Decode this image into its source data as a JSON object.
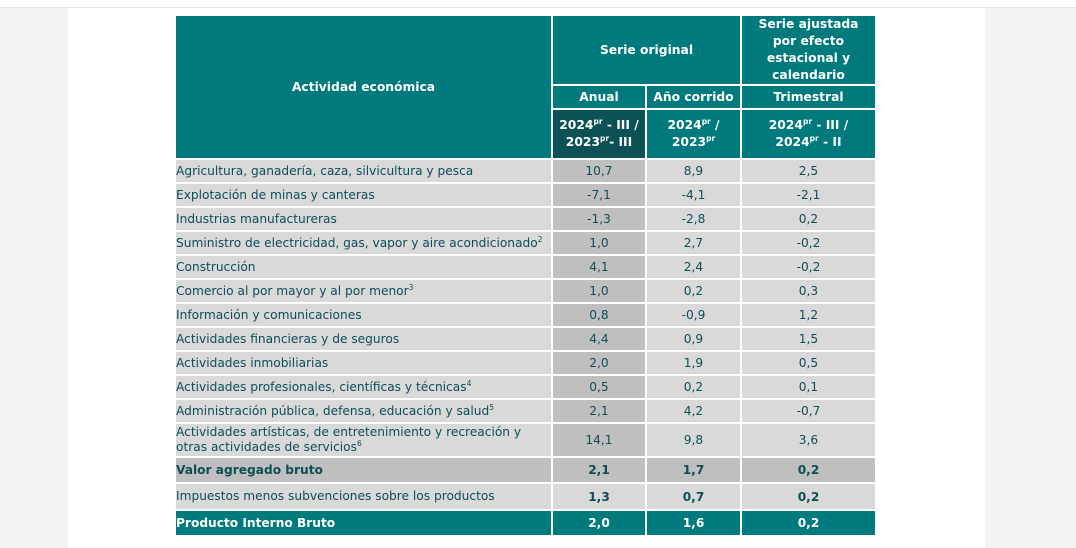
{
  "colors": {
    "header_teal": "#007a7c",
    "header_dark_teal": "#0b5156",
    "row_gray": "#d9d9d9",
    "row_dark_gray": "#bfbfbf",
    "text_teal": "#0e4e56"
  },
  "header": {
    "activity": "Actividad económica",
    "original_series": "Serie original",
    "adjusted_series": "Serie ajustada por efecto estacional y calendario",
    "anual": "Anual",
    "ano_corrido": "Año corrido",
    "trimestral": "Trimestral",
    "period_anual": {
      "a": "2024",
      "a_sup": "pr",
      "b": " - III / ",
      "c": "2023",
      "c_sup": "pr",
      "d": "- III"
    },
    "period_ac": {
      "a": "2024",
      "a_sup": "pr",
      "b": " / ",
      "c": "2023",
      "c_sup": "pr"
    },
    "period_tri": {
      "a": "2024",
      "a_sup": "pr",
      "b": " - III / ",
      "c": "2024",
      "c_sup": "pr",
      "d": " - II"
    }
  },
  "rows": [
    {
      "label": "Agricultura, ganadería, caza, silvicultura y pesca",
      "note": "",
      "anual": "10,7",
      "ano_corrido": "8,9",
      "trimestral": "2,5"
    },
    {
      "label": "Explotación de minas y canteras",
      "note": "",
      "anual": "-7,1",
      "ano_corrido": "-4,1",
      "trimestral": "-2,1"
    },
    {
      "label": "Industrias manufactureras",
      "note": "",
      "anual": "-1,3",
      "ano_corrido": "-2,8",
      "trimestral": "0,2"
    },
    {
      "label": "Suministro de electricidad, gas, vapor y aire acondicionado",
      "note": "2",
      "anual": "1,0",
      "ano_corrido": "2,7",
      "trimestral": "-0,2"
    },
    {
      "label": "Construcción",
      "note": "",
      "anual": "4,1",
      "ano_corrido": "2,4",
      "trimestral": "-0,2"
    },
    {
      "label": "Comercio al por mayor y al por menor",
      "note": "3",
      "anual": "1,0",
      "ano_corrido": "0,2",
      "trimestral": "0,3"
    },
    {
      "label": "Información y comunicaciones",
      "note": "",
      "anual": "0,8",
      "ano_corrido": "-0,9",
      "trimestral": "1,2"
    },
    {
      "label": "Actividades financieras y de seguros",
      "note": "",
      "anual": "4,4",
      "ano_corrido": "0,9",
      "trimestral": "1,5"
    },
    {
      "label": "Actividades inmobiliarias",
      "note": "",
      "anual": "2,0",
      "ano_corrido": "1,9",
      "trimestral": "0,5"
    },
    {
      "label": "Actividades profesionales, científicas y técnicas",
      "note": "4",
      "anual": "0,5",
      "ano_corrido": "0,2",
      "trimestral": "0,1"
    },
    {
      "label": "Administración pública, defensa, educación y salud",
      "note": "5",
      "anual": "2,1",
      "ano_corrido": "4,2",
      "trimestral": "-0,7"
    },
    {
      "label": "Actividades artísticas, de entretenimiento y recreación y otras actividades de servicios",
      "note": "6",
      "anual": "14,1",
      "ano_corrido": "9,8",
      "trimestral": "3,6"
    }
  ],
  "totals": {
    "vab": {
      "label": "Valor agregado bruto",
      "anual": "2,1",
      "ano_corrido": "1,7",
      "trimestral": "0,2"
    },
    "impuestos": {
      "label": "Impuestos menos subvenciones sobre los productos",
      "anual": "1,3",
      "ano_corrido": "0,7",
      "trimestral": "0,2"
    },
    "pib": {
      "label": "Producto Interno Bruto",
      "anual": "2,0",
      "ano_corrido": "1,6",
      "trimestral": "0,2"
    }
  }
}
